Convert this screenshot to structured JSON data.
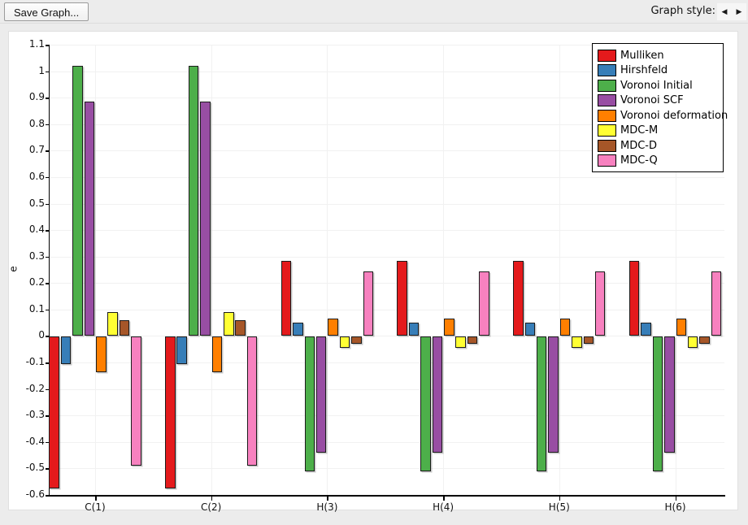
{
  "toolbar": {
    "save_button": "Save Graph...",
    "graph_style_label": "Graph style:",
    "prev_arrow": "◀",
    "next_arrow": "▶"
  },
  "chart_data": {
    "type": "bar",
    "title": "",
    "xlabel": "",
    "ylabel": "e",
    "ylim": [
      -0.6,
      1.1
    ],
    "ytick_step": 0.1,
    "grid": true,
    "legend_position": "top-right",
    "categories": [
      "C(1)",
      "C(2)",
      "H(3)",
      "H(4)",
      "H(5)",
      "H(6)"
    ],
    "series": [
      {
        "name": "Mulliken",
        "color": "#e41a1c",
        "values": [
          -0.575,
          -0.575,
          0.285,
          0.285,
          0.285,
          0.285
        ]
      },
      {
        "name": "Hirshfeld",
        "color": "#377eb8",
        "values": [
          -0.105,
          -0.105,
          0.05,
          0.05,
          0.05,
          0.05
        ]
      },
      {
        "name": "Voronoi Initial",
        "color": "#4daf4a",
        "values": [
          1.02,
          1.02,
          -0.51,
          -0.51,
          -0.51,
          -0.51
        ]
      },
      {
        "name": "Voronoi SCF",
        "color": "#984ea3",
        "values": [
          0.885,
          0.885,
          -0.44,
          -0.44,
          -0.44,
          -0.44
        ]
      },
      {
        "name": "Voronoi deformation",
        "color": "#ff7f00",
        "values": [
          -0.135,
          -0.135,
          0.065,
          0.065,
          0.065,
          0.065
        ]
      },
      {
        "name": "MDC-M",
        "color": "#ffff33",
        "values": [
          0.09,
          0.09,
          -0.045,
          -0.045,
          -0.045,
          -0.045
        ]
      },
      {
        "name": "MDC-D",
        "color": "#a65628",
        "values": [
          0.06,
          0.06,
          -0.03,
          -0.03,
          -0.03,
          -0.03
        ]
      },
      {
        "name": "MDC-Q",
        "color": "#f781bf",
        "values": [
          -0.49,
          -0.49,
          0.245,
          0.245,
          0.245,
          0.245
        ]
      }
    ]
  }
}
